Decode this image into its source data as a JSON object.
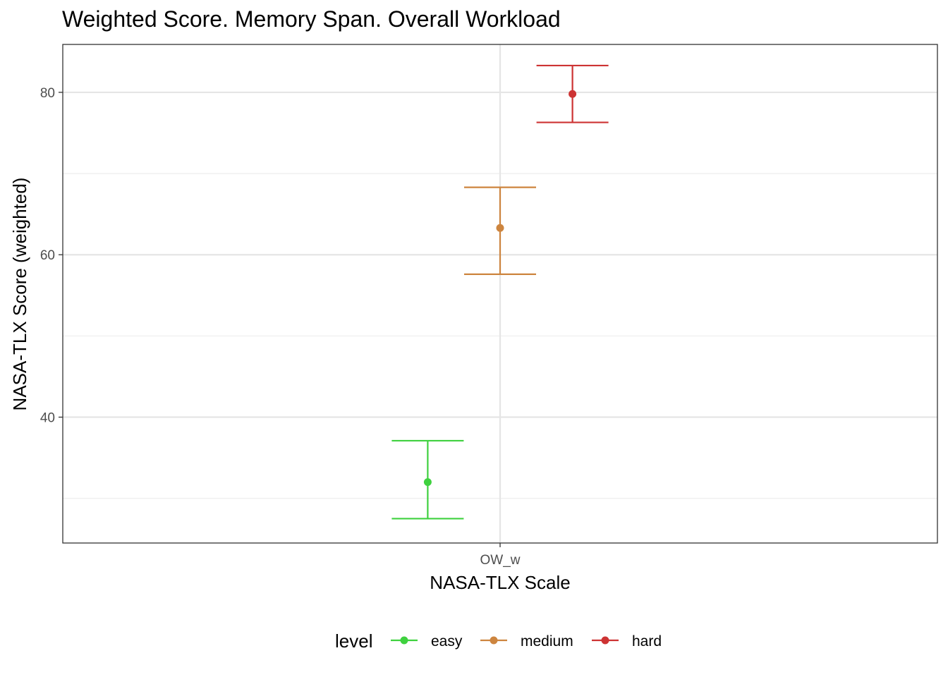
{
  "chart_data": {
    "type": "scatter",
    "title": "Weighted Score. Memory Span. Overall Workload",
    "xlabel": "NASA-TLX Scale",
    "ylabel": "NASA-TLX Score (weighted)",
    "categories": [
      "OW_w"
    ],
    "ylim": [
      24.5,
      85.9
    ],
    "yticks": [
      40,
      60,
      80
    ],
    "ytick_labels": [
      "40",
      "60",
      "80"
    ],
    "grid": true,
    "legend": {
      "title": "level",
      "position": "bottom"
    },
    "series": [
      {
        "name": "easy",
        "color": "#3fd13f",
        "x": "OW_w",
        "y": 32.0,
        "ymin": 27.5,
        "ymax": 37.1,
        "dodge": -0.9
      },
      {
        "name": "medium",
        "color": "#cd853f",
        "x": "OW_w",
        "y": 63.3,
        "ymin": 57.6,
        "ymax": 68.3,
        "dodge": 0
      },
      {
        "name": "hard",
        "color": "#cd3333",
        "x": "OW_w",
        "y": 79.8,
        "ymin": 76.3,
        "ymax": 83.3,
        "dodge": 0.9
      }
    ]
  }
}
